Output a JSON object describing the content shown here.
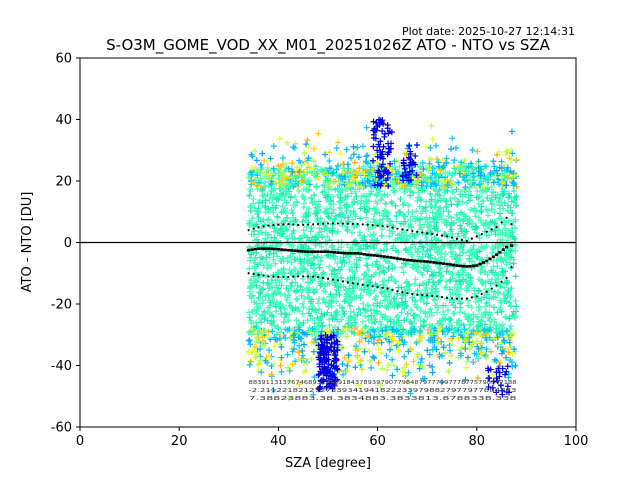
{
  "chart_data": {
    "type": "scatter",
    "title": "S-O3M_GOME_VOD_XX_M01_20251026Z ATO - NTO vs SZA",
    "plot_date": "Plot date: 2025-10-27 12:14:31",
    "xlabel": "SZA [degree]",
    "ylabel": "ATO - NTO [DU]",
    "xlim": [
      0,
      100
    ],
    "ylim": [
      -60,
      60
    ],
    "xticks": [
      0,
      20,
      40,
      60,
      80,
      100
    ],
    "yticks": [
      -60,
      -40,
      -20,
      0,
      20,
      40,
      60
    ],
    "grid": false,
    "zero_line": 0,
    "marker": "+",
    "density_colors": [
      "#1de9b6",
      "#3dffb8",
      "#00c8ff",
      "#00a8ff",
      "#b0ff50",
      "#e8ff30",
      "#ffd000",
      "#ffb000",
      "#0000e0"
    ],
    "mean": {
      "x": [
        34,
        36,
        38,
        40,
        42,
        44,
        46,
        48,
        50,
        52,
        54,
        56,
        58,
        60,
        62,
        64,
        66,
        68,
        70,
        72,
        74,
        76,
        78,
        80,
        82,
        84,
        86,
        87
      ],
      "y": [
        -2.5,
        -2,
        -2,
        -2.2,
        -2.5,
        -2.8,
        -3,
        -3,
        -3,
        -3.3,
        -3.5,
        -3.5,
        -4,
        -4.3,
        -4.7,
        -5.2,
        -5.7,
        -6,
        -6.2,
        -6.6,
        -7,
        -7.5,
        -7.8,
        -7.5,
        -6,
        -4,
        -1.5,
        -1
      ],
      "color": "#000000"
    },
    "upper_band": {
      "x": [
        34,
        36,
        38,
        40,
        42,
        44,
        46,
        48,
        50,
        52,
        54,
        56,
        58,
        60,
        62,
        64,
        66,
        68,
        70,
        72,
        74,
        76,
        78,
        80,
        82,
        84,
        86,
        87
      ],
      "y": [
        4,
        5,
        5.5,
        5.8,
        6,
        5.7,
        5.8,
        6,
        6.2,
        6.2,
        6.1,
        6,
        5.8,
        5.5,
        5.2,
        4.5,
        4,
        3.5,
        3,
        2.5,
        2,
        1.2,
        0.5,
        2,
        3.5,
        5,
        8,
        6
      ],
      "color": "#000000"
    },
    "lower_band": {
      "x": [
        34,
        36,
        38,
        40,
        42,
        44,
        46,
        48,
        50,
        52,
        54,
        56,
        58,
        60,
        62,
        64,
        66,
        68,
        70,
        72,
        74,
        76,
        78,
        80,
        82,
        84,
        86,
        87
      ],
      "y": [
        -10,
        -10.5,
        -11,
        -11.2,
        -11.2,
        -11,
        -11,
        -11.2,
        -11.8,
        -12.3,
        -13,
        -13.5,
        -14,
        -14.5,
        -15,
        -15.8,
        -16.5,
        -17,
        -17.2,
        -17.5,
        -18,
        -18.3,
        -18.2,
        -17.5,
        -16,
        -14,
        -11.5,
        -8
      ],
      "color": "#000000"
    },
    "dense_region": {
      "x_range": [
        34,
        88
      ],
      "y_core_range": [
        -30,
        25
      ]
    },
    "bin_annotations_rows": [
      "883911313767468938348918437893979077984879777997778775798347188",
      "-2.21122182127273393419418222339798827977977884883",
      "7.38823883.38.3834883.3833813.8788338.338"
    ]
  }
}
